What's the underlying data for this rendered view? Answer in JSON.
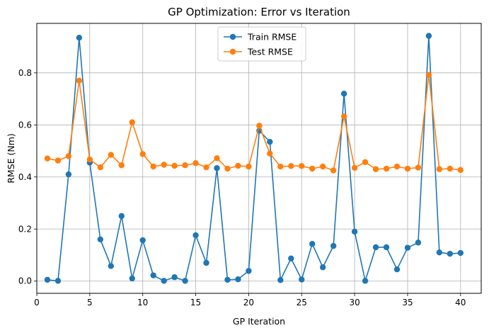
{
  "chart_data": {
    "type": "line",
    "title": "GP Optimization: Error vs Iteration",
    "xlabel": "GP Iteration",
    "ylabel": "RMSE (Nm)",
    "xlim": [
      0,
      41.95
    ],
    "ylim": [
      -0.047,
      0.99
    ],
    "xticks": [
      0,
      5,
      10,
      15,
      20,
      25,
      30,
      35,
      40
    ],
    "yticks": [
      0.0,
      0.2,
      0.4,
      0.6,
      0.8
    ],
    "grid": true,
    "legend_position": "top-center",
    "x": [
      1,
      2,
      3,
      4,
      5,
      6,
      7,
      8,
      9,
      10,
      11,
      12,
      13,
      14,
      15,
      16,
      17,
      18,
      19,
      20,
      21,
      22,
      23,
      24,
      25,
      26,
      27,
      28,
      29,
      30,
      31,
      32,
      33,
      34,
      35,
      36,
      37,
      38,
      39,
      40
    ],
    "series": [
      {
        "name": "Train RMSE",
        "color": "#1f77b4",
        "values": [
          0.005,
          0.001,
          0.41,
          0.935,
          0.455,
          0.16,
          0.058,
          0.25,
          0.01,
          0.157,
          0.022,
          0.001,
          0.015,
          0.001,
          0.176,
          0.07,
          0.434,
          0.005,
          0.007,
          0.039,
          0.578,
          0.535,
          0.004,
          0.087,
          0.006,
          0.143,
          0.053,
          0.135,
          0.72,
          0.19,
          0.001,
          0.13,
          0.13,
          0.045,
          0.128,
          0.148,
          0.942,
          0.11,
          0.105,
          0.108
        ]
      },
      {
        "name": "Test RMSE",
        "color": "#ff7f0e",
        "values": [
          0.471,
          0.463,
          0.48,
          0.77,
          0.467,
          0.437,
          0.485,
          0.445,
          0.61,
          0.488,
          0.44,
          0.447,
          0.443,
          0.445,
          0.453,
          0.437,
          0.472,
          0.432,
          0.443,
          0.44,
          0.597,
          0.49,
          0.44,
          0.442,
          0.442,
          0.432,
          0.44,
          0.425,
          0.633,
          0.435,
          0.457,
          0.43,
          0.432,
          0.44,
          0.432,
          0.436,
          0.792,
          0.43,
          0.432,
          0.427
        ]
      }
    ]
  }
}
